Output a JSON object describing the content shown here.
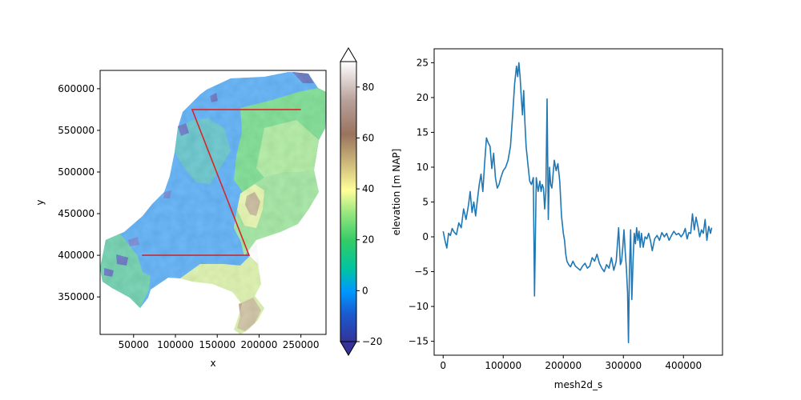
{
  "chart_data": [
    {
      "type": "heatmap",
      "xlabel": "x",
      "ylabel": "y",
      "xlim": [
        10000,
        280000
      ],
      "ylim": [
        305000,
        622000
      ],
      "xticks": [
        50000,
        100000,
        150000,
        200000,
        250000
      ],
      "xtick_labels": [
        "50000",
        "100000",
        "150000",
        "200000",
        "250000"
      ],
      "yticks": [
        350000,
        400000,
        450000,
        500000,
        550000,
        600000
      ],
      "ytick_labels": [
        "350000",
        "400000",
        "450000",
        "500000",
        "550000",
        "600000"
      ],
      "colorbar": {
        "label": "elevation [m NAP]",
        "vmin": -20,
        "vmax": 90,
        "ticks": [
          -20,
          0,
          20,
          40,
          60,
          80
        ],
        "tick_labels": [
          "−20",
          "0",
          "20",
          "40",
          "60",
          "80"
        ],
        "extend": "both",
        "colormap": "terrain"
      },
      "transect": {
        "color": "#d62728",
        "x": [
          250000,
          120000,
          188000,
          60000
        ],
        "y": [
          575000,
          575000,
          400000,
          400000
        ]
      }
    },
    {
      "type": "line",
      "xlabel": "mesh2d_s",
      "ylabel": "",
      "xlim": [
        -15000,
        465000
      ],
      "ylim": [
        -17,
        27
      ],
      "xticks": [
        0,
        100000,
        200000,
        300000,
        400000
      ],
      "xtick_labels": [
        "0",
        "100000",
        "200000",
        "300000",
        "400000"
      ],
      "yticks": [
        -15,
        -10,
        -5,
        0,
        5,
        10,
        15,
        20,
        25
      ],
      "ytick_labels": [
        "−15",
        "−10",
        "−5",
        "0",
        "5",
        "10",
        "15",
        "20",
        "25"
      ],
      "color": "#1f77b4",
      "series": [
        {
          "x": [
            0,
            3000,
            6000,
            9000,
            12000,
            15000,
            18000,
            22000,
            26000,
            30000,
            34000,
            38000,
            42000,
            45000,
            48000,
            51000,
            54000,
            57000,
            60000,
            63000,
            66000,
            69000,
            72000,
            75000,
            78000,
            81000,
            84000,
            87000,
            90000,
            93000,
            96000,
            100000,
            104000,
            108000,
            112000,
            116000,
            119000,
            122000,
            124000,
            126000,
            128000,
            130000,
            132000,
            134000,
            136000,
            138000,
            141000,
            144000,
            147000,
            150000,
            152000,
            155000,
            158000,
            161000,
            163000,
            165000,
            167000,
            169000,
            171000,
            173000,
            175000,
            177000,
            179000,
            181000,
            183000,
            185000,
            188000,
            191000,
            194000,
            197000,
            200000,
            202000,
            204000,
            206000,
            209000,
            212000,
            216000,
            220000,
            224000,
            228000,
            232000,
            236000,
            240000,
            244000,
            248000,
            252000,
            256000,
            260000,
            264000,
            268000,
            272000,
            276000,
            280000,
            284000,
            288000,
            292000,
            295000,
            297000,
            299000,
            301000,
            303000,
            305000,
            307000,
            308500,
            310000,
            312000,
            314000,
            316000,
            318000,
            320000,
            322000,
            324000,
            326000,
            328000,
            330000,
            333000,
            336000,
            339000,
            342000,
            345000,
            348000,
            352000,
            356000,
            360000,
            364000,
            368000,
            372000,
            376000,
            380000,
            384000,
            388000,
            392000,
            396000,
            400000,
            403000,
            406000,
            409000,
            412000,
            415000,
            418000,
            421000,
            424000,
            427000,
            430000,
            433000,
            436000,
            439000,
            442000,
            445000,
            447000
          ],
          "y": [
            0.8,
            -0.5,
            -1.6,
            0.5,
            0.2,
            1.2,
            0.7,
            0.3,
            2.0,
            1.3,
            4.0,
            2.5,
            4.5,
            6.5,
            3.5,
            5.0,
            3.0,
            5.3,
            7.5,
            9.0,
            6.5,
            10.5,
            14.2,
            13.5,
            13.0,
            9.8,
            12.0,
            8.5,
            7.0,
            7.5,
            8.5,
            9.5,
            10.0,
            11.0,
            13.0,
            18.0,
            22.0,
            24.5,
            23.0,
            25.0,
            23.0,
            20.0,
            17.5,
            21.0,
            16.5,
            13.0,
            10.5,
            8.0,
            7.5,
            8.5,
            -8.5,
            8.5,
            6.5,
            8.0,
            6.5,
            7.5,
            7.0,
            4.0,
            6.5,
            19.8,
            2.5,
            10.0,
            7.5,
            7.0,
            9.0,
            11.0,
            9.5,
            10.5,
            8.0,
            3.0,
            0.5,
            -0.5,
            -2.5,
            -3.5,
            -4.0,
            -4.3,
            -3.5,
            -4.2,
            -4.5,
            -4.8,
            -4.2,
            -3.8,
            -4.5,
            -4.2,
            -3.0,
            -3.5,
            -2.5,
            -3.8,
            -4.5,
            -5.0,
            -4.0,
            -4.5,
            -3.0,
            -4.8,
            -3.5,
            1.3,
            -4.0,
            -3.5,
            -1.5,
            1.0,
            -2.0,
            -4.5,
            -8.0,
            -15.2,
            -5.0,
            1.0,
            -9.0,
            -3.5,
            0.5,
            -1.0,
            1.3,
            -0.5,
            0.8,
            -1.5,
            0.5,
            -1.5,
            0.0,
            -0.3,
            0.5,
            -0.5,
            -2.0,
            -0.3,
            0.2,
            -0.5,
            0.6,
            0.0,
            0.5,
            -0.5,
            0.2,
            0.8,
            0.3,
            0.5,
            0.0,
            0.5,
            1.2,
            -0.3,
            0.6,
            0.5,
            3.3,
            1.0,
            2.8,
            1.5,
            0.0,
            1.0,
            0.5,
            2.5,
            -0.5,
            1.5,
            0.5,
            1.3
          ]
        }
      ]
    }
  ]
}
